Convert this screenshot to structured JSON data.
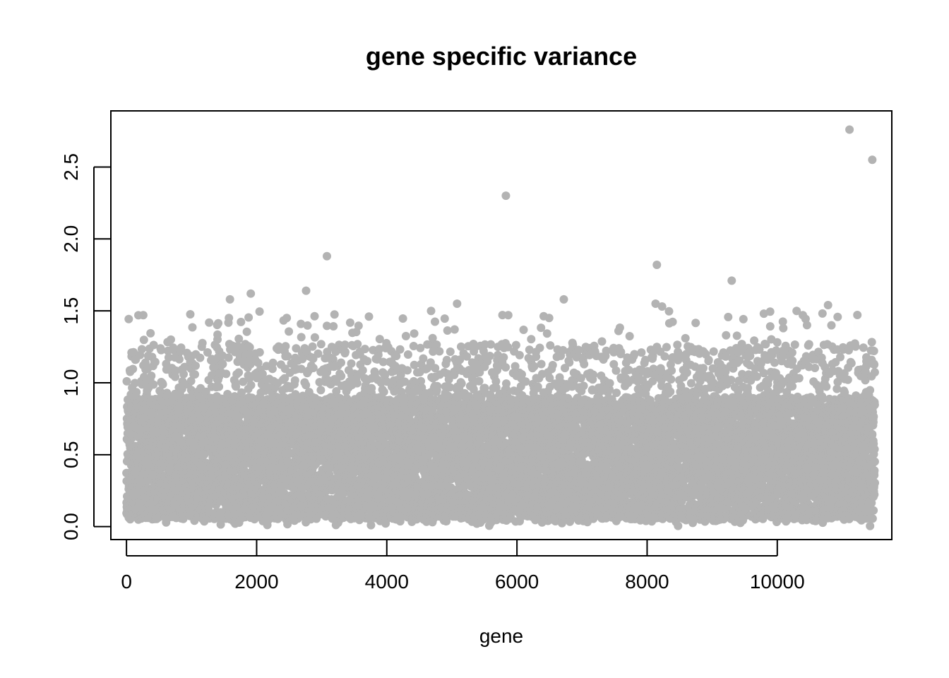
{
  "chart_data": {
    "type": "scatter",
    "title": "gene specific variance",
    "xlabel": "gene",
    "ylabel": "",
    "xlim": [
      -240,
      11760
    ],
    "ylim": [
      -0.09,
      2.89
    ],
    "x_ticks": [
      0,
      2000,
      4000,
      6000,
      8000,
      10000
    ],
    "x_tick_labels": [
      "0",
      "2000",
      "4000",
      "6000",
      "8000",
      "10000"
    ],
    "y_ticks": [
      0.0,
      0.5,
      1.0,
      1.5,
      2.0,
      2.5
    ],
    "y_tick_labels": [
      "0.0",
      "0.5",
      "1.0",
      "1.5",
      "2.0",
      "2.5"
    ],
    "grid": false,
    "point_color": "#B3B3B3",
    "n_points": 11500,
    "bulk_range": {
      "x": [
        0,
        11500
      ],
      "y": [
        0.0,
        1.5
      ]
    },
    "outliers": [
      {
        "x": 1590,
        "y": 1.58
      },
      {
        "x": 1910,
        "y": 1.62
      },
      {
        "x": 2760,
        "y": 1.64
      },
      {
        "x": 3080,
        "y": 1.88
      },
      {
        "x": 5080,
        "y": 1.55
      },
      {
        "x": 5830,
        "y": 2.3
      },
      {
        "x": 6720,
        "y": 1.58
      },
      {
        "x": 8130,
        "y": 1.55
      },
      {
        "x": 8150,
        "y": 1.82
      },
      {
        "x": 8230,
        "y": 1.53
      },
      {
        "x": 9300,
        "y": 1.71
      },
      {
        "x": 10780,
        "y": 1.54
      },
      {
        "x": 11110,
        "y": 2.76
      },
      {
        "x": 11460,
        "y": 2.55
      }
    ]
  }
}
